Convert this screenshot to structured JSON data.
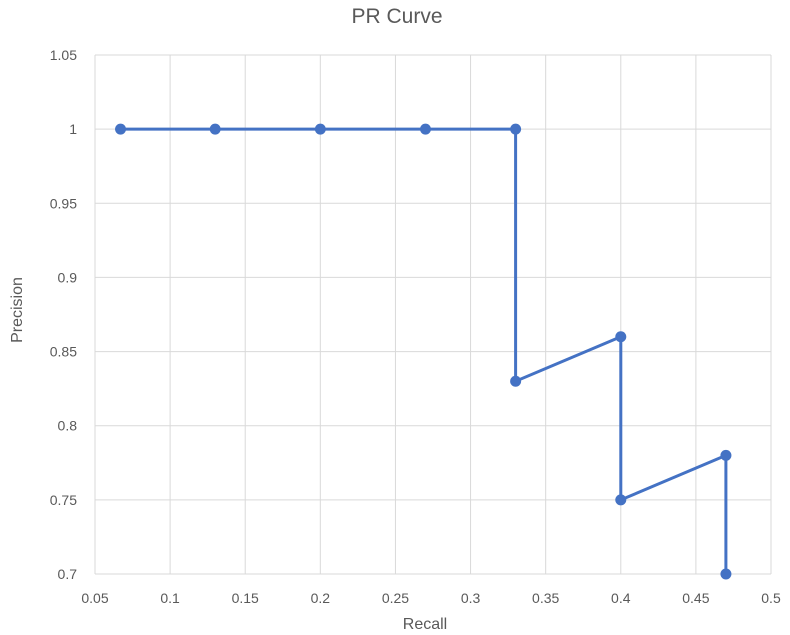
{
  "chart_data": {
    "type": "scatter",
    "title": "PR Curve",
    "xlabel": "Recall",
    "ylabel": "Precision",
    "xlim": [
      0.05,
      0.5
    ],
    "ylim": [
      0.7,
      1.05
    ],
    "x_ticks": [
      "0.05",
      "0.1",
      "0.15",
      "0.2",
      "0.25",
      "0.3",
      "0.35",
      "0.4",
      "0.45",
      "0.5"
    ],
    "y_ticks": [
      "0.7",
      "0.75",
      "0.8",
      "0.85",
      "0.9",
      "0.95",
      "1",
      "1.05"
    ],
    "grid": true,
    "legend": "none",
    "series": [
      {
        "color": "#4472C4",
        "marker": "circle",
        "line": "straight",
        "x": [
          0.067,
          0.13,
          0.2,
          0.27,
          0.33,
          0.33,
          0.4,
          0.4,
          0.47,
          0.47
        ],
        "y": [
          1.0,
          1.0,
          1.0,
          1.0,
          1.0,
          0.83,
          0.86,
          0.75,
          0.78,
          0.7
        ]
      }
    ],
    "colors": {
      "grid": "#D9D9D9",
      "text": "#595959",
      "series": "#4472C4"
    }
  }
}
